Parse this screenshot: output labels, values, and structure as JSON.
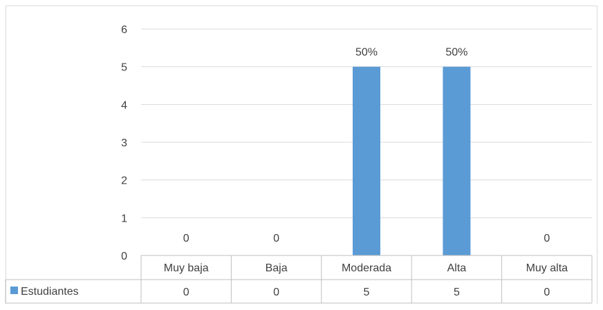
{
  "chart_data": {
    "type": "bar",
    "categories": [
      "Muy baja",
      "Baja",
      "Moderada",
      "Alta",
      "Muy alta"
    ],
    "series": [
      {
        "name": "Estudiantes",
        "values": [
          0,
          0,
          5,
          5,
          0
        ],
        "color": "#5b9bd5"
      }
    ],
    "data_labels": [
      "0",
      "0",
      "50%",
      "50%",
      "0"
    ],
    "yticks": [
      "0",
      "1",
      "2",
      "3",
      "4",
      "5",
      "6"
    ],
    "ylim": [
      0,
      6
    ],
    "grid": true,
    "legend": "data-table",
    "data_table": true
  }
}
